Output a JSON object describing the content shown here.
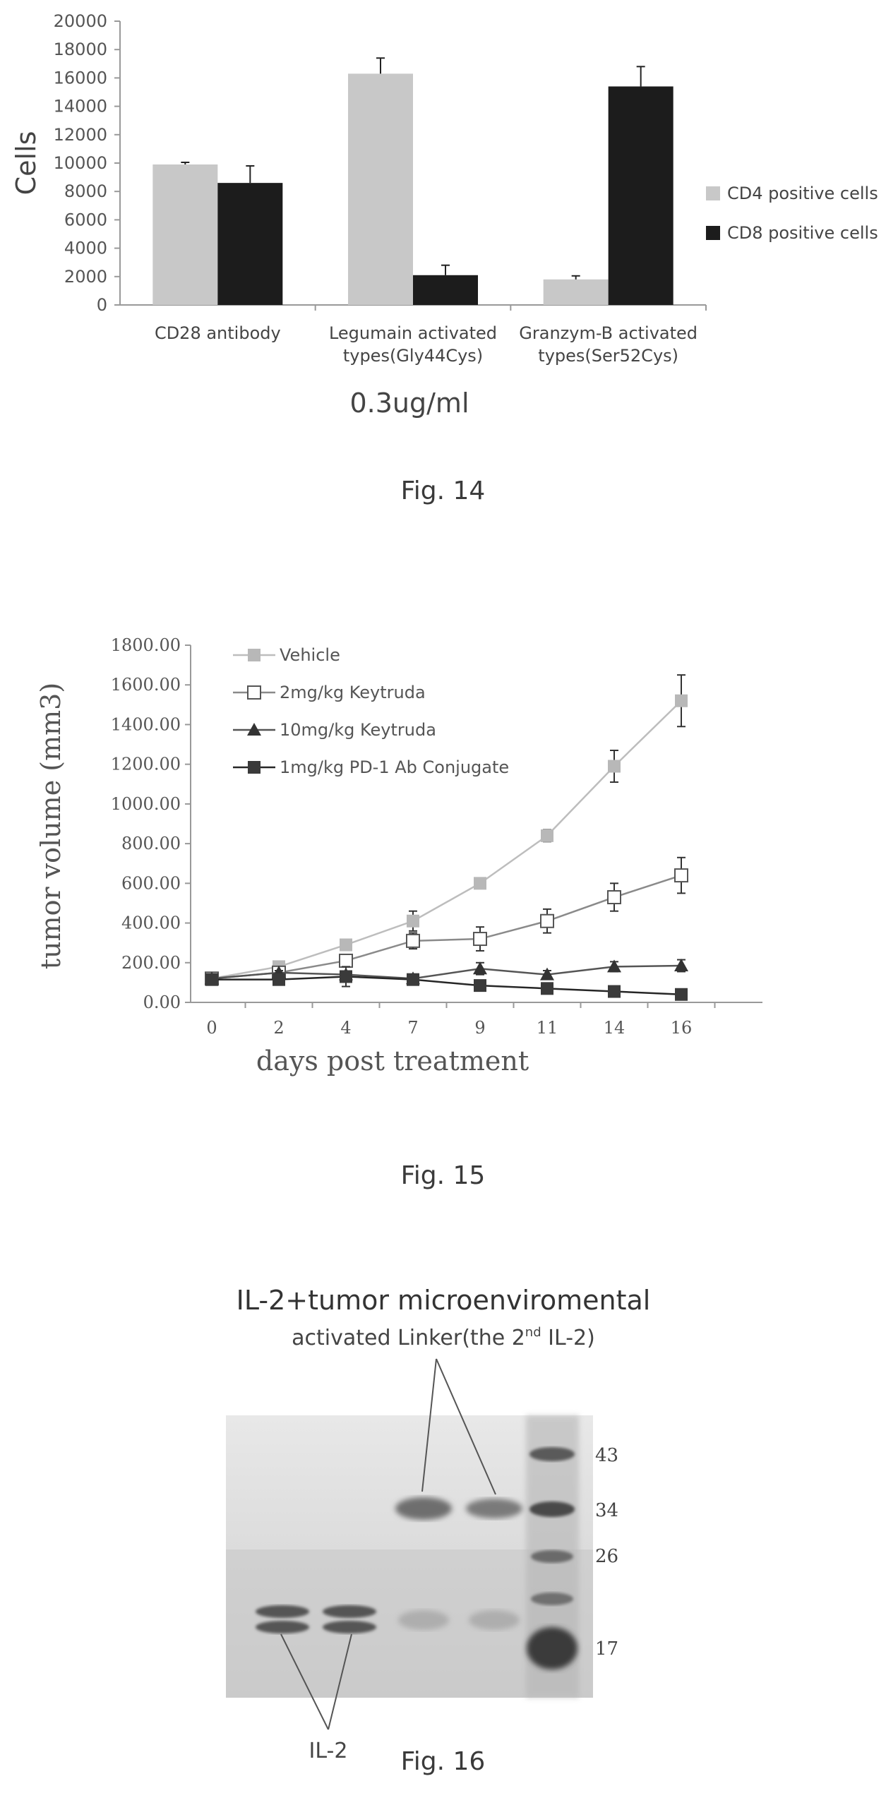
{
  "figures": [
    {
      "caption": "Fig. 14",
      "chart_data": {
        "type": "bar",
        "ylabel": "Cells",
        "xlabel": "0.3ug/ml",
        "ylim": [
          0,
          20000
        ],
        "yticks": [
          0,
          2000,
          4000,
          6000,
          8000,
          10000,
          12000,
          14000,
          16000,
          18000,
          20000
        ],
        "categories": [
          [
            "CD28 antibody"
          ],
          [
            "Legumain activated",
            "types(Gly44Cys)"
          ],
          [
            "Granzym-B activated",
            "types(Ser52Cys)"
          ]
        ],
        "series": [
          {
            "name": "CD4 positive cells",
            "color": "#c8c8c8",
            "values": [
              9900,
              16300,
              1800
            ],
            "errors": [
              150,
              1100,
              250
            ]
          },
          {
            "name": "CD8 positive cells",
            "color": "#1c1c1c",
            "values": [
              8600,
              2100,
              15400
            ],
            "errors": [
              1200,
              700,
              1400
            ]
          }
        ],
        "legend_position": "right",
        "grid": false
      }
    },
    {
      "caption": "Fig. 15",
      "chart_data": {
        "type": "line",
        "ylabel": "tumor volume (mm3)",
        "xlabel": "days post treatment",
        "ylim": [
          0,
          1800
        ],
        "yticks": [
          "0.00",
          "200.00",
          "400.00",
          "600.00",
          "800.00",
          "1000.00",
          "1200.00",
          "1400.00",
          "1600.00",
          "1800.00"
        ],
        "x": [
          0,
          2,
          4,
          7,
          9,
          11,
          14,
          16
        ],
        "series": [
          {
            "name": "Vehicle",
            "marker": "square-filled-light",
            "color": "#bdbdbd",
            "values": [
              120,
              180,
              290,
              410,
              600,
              840,
              1190,
              1520
            ],
            "errors": [
              10,
              15,
              20,
              50,
              20,
              30,
              80,
              130
            ]
          },
          {
            "name": "2mg/kg Keytruda",
            "marker": "square-open",
            "color": "#8a8a8a",
            "values": [
              120,
              150,
              210,
              310,
              320,
              410,
              530,
              640
            ],
            "errors": [
              10,
              15,
              25,
              40,
              60,
              60,
              70,
              90
            ]
          },
          {
            "name": "10mg/kg Keytruda",
            "marker": "triangle",
            "color": "#555555",
            "values": [
              120,
              150,
              140,
              120,
              170,
              140,
              180,
              185
            ],
            "errors": [
              10,
              10,
              15,
              10,
              30,
              20,
              25,
              30
            ]
          },
          {
            "name": "1mg/kg PD-1 Ab Conjugate",
            "marker": "square-dark",
            "color": "#262626",
            "values": [
              115,
              115,
              130,
              115,
              85,
              70,
              55,
              40
            ],
            "errors": [
              10,
              10,
              50,
              10,
              10,
              10,
              10,
              10
            ]
          }
        ],
        "legend_position": "top-left",
        "grid": false
      }
    },
    {
      "caption": "Fig. 16",
      "title": "IL-2+tumor microenviromental",
      "subtitle_main": "activated Linker(the 2",
      "subtitle_sup": "nd",
      "subtitle_tail": " IL-2)",
      "bottom_label": "IL-2",
      "ladder_labels": [
        "43",
        "34",
        "26",
        "17"
      ]
    }
  ]
}
